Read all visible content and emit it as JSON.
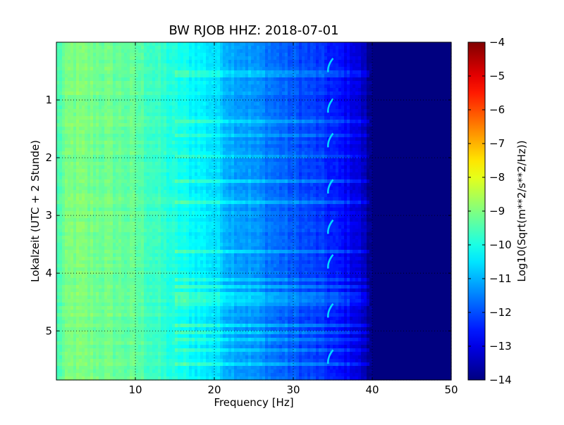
{
  "chart_data": {
    "type": "heatmap",
    "title": "BW RJOB HHZ: 2018-07-01",
    "xlabel": "Frequency [Hz]",
    "ylabel": "Lokalzeit (UTC + 2 Stunde)",
    "xlim": [
      0,
      50
    ],
    "ylim": [
      5.85,
      0
    ],
    "x_ticks": [
      10,
      20,
      30,
      40,
      50
    ],
    "x_tick_labels": [
      "10",
      "20",
      "30",
      "40",
      "50"
    ],
    "y_ticks": [
      1,
      2,
      3,
      4,
      5
    ],
    "y_tick_labels": [
      "1",
      "2",
      "3",
      "4",
      "5"
    ],
    "grid": true,
    "colormap": "jet",
    "colorbar": {
      "label": "Log10(Sqrt(m**2/s**2/Hz))",
      "range": [
        -14,
        -4
      ],
      "ticks": [
        -4,
        -5,
        -6,
        -7,
        -8,
        -9,
        -10,
        -11,
        -12,
        -13,
        -14
      ],
      "tick_labels": [
        "−4",
        "−5",
        "−6",
        "−7",
        "−8",
        "−9",
        "−10",
        "−11",
        "−12",
        "−13",
        "−14"
      ]
    },
    "spectrum_profile": {
      "frequency_hz": [
        0,
        1,
        2,
        5,
        10,
        15,
        20,
        22,
        25,
        28,
        30,
        33,
        35,
        37,
        38,
        39,
        39.5,
        40,
        50
      ],
      "log10_amplitude": [
        -9.6,
        -9.2,
        -9.0,
        -9.1,
        -9.3,
        -10.0,
        -10.5,
        -11.0,
        -11.3,
        -11.7,
        -11.9,
        -12.2,
        -12.5,
        -12.8,
        -13.0,
        -13.4,
        -13.8,
        -14.0,
        -14.0
      ]
    },
    "tonal_line": {
      "frequency_hz": 34.5,
      "log10_amplitude": -10.6,
      "bursts_hours": [
        0.4,
        1.1,
        1.7,
        2.5,
        3.2,
        3.8,
        4.65,
        5.45
      ]
    },
    "noise_bands_hours": [
      0.55,
      1.35,
      1.6,
      2.0,
      2.4,
      2.75,
      3.6,
      4.1,
      4.25,
      4.35,
      4.45,
      4.55,
      4.9,
      5.05,
      5.15,
      5.35,
      5.6
    ]
  }
}
